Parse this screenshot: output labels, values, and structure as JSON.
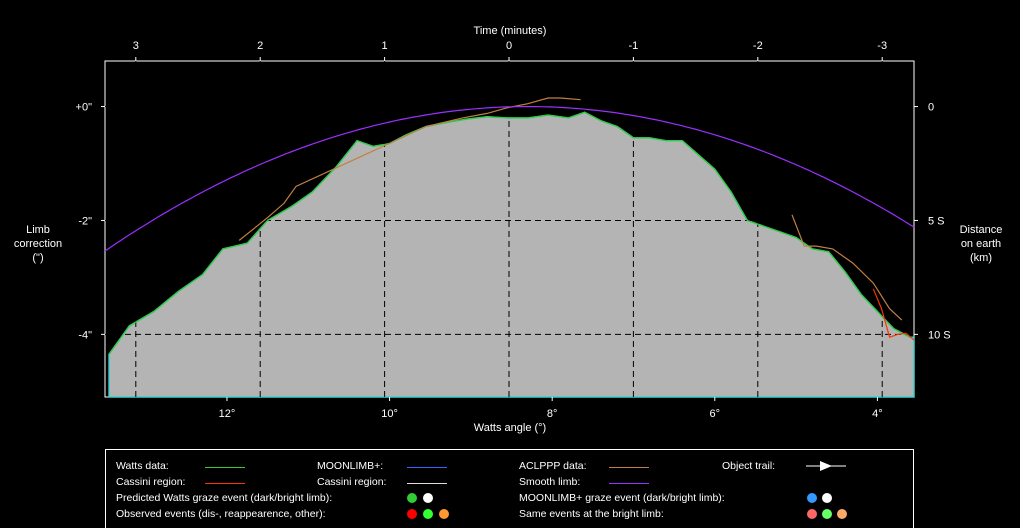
{
  "chart_data": {
    "type": "area",
    "top_axis": {
      "label": "Time (minutes)",
      "ticks": [
        "3",
        "2",
        "1",
        "0",
        "-1",
        "-2",
        "-3"
      ],
      "values": [
        3,
        2,
        1,
        0,
        -1,
        -2,
        -3
      ]
    },
    "bottom_axis": {
      "label": "Watts angle (°)",
      "ticks": [
        "12°",
        "10°",
        "8°",
        "6°",
        "4°"
      ],
      "values": [
        12,
        10,
        8,
        6,
        4
      ],
      "range": [
        13.5,
        3.55
      ]
    },
    "left_axis": {
      "label_lines": [
        "Limb",
        "correction",
        "(\")"
      ],
      "ticks": [
        "+0\"",
        "-2\"",
        "-4\""
      ],
      "values": [
        0,
        -2,
        -4
      ],
      "range": [
        0.8,
        -5.1
      ]
    },
    "right_axis": {
      "label_lines": [
        "Distance",
        "on earth",
        "(km)"
      ],
      "ticks": [
        "0",
        "5 S",
        "10 S"
      ],
      "values": [
        0,
        -2,
        -4
      ]
    },
    "grid": true,
    "series": [
      {
        "name": "Watts data",
        "color": "#33cc33",
        "x": [
          13.45,
          13.2,
          12.9,
          12.6,
          12.3,
          12.05,
          11.75,
          11.5,
          11.2,
          10.95,
          10.65,
          10.4,
          10.2,
          10.0,
          9.8,
          9.55,
          9.3,
          9.05,
          8.8,
          8.55,
          8.3,
          8.05,
          7.8,
          7.6,
          7.4,
          7.2,
          7.0,
          6.8,
          6.6,
          6.4,
          6.2,
          6.0,
          5.8,
          5.6,
          5.4,
          5.2,
          5.0,
          4.8,
          4.6,
          4.4,
          4.2,
          4.0,
          3.8,
          3.6
        ],
        "y": [
          -4.35,
          -3.85,
          -3.6,
          -3.25,
          -2.95,
          -2.5,
          -2.4,
          -2.0,
          -1.75,
          -1.5,
          -1.05,
          -0.6,
          -0.7,
          -0.65,
          -0.5,
          -0.35,
          -0.28,
          -0.22,
          -0.18,
          -0.2,
          -0.2,
          -0.15,
          -0.2,
          -0.1,
          -0.25,
          -0.35,
          -0.55,
          -0.55,
          -0.6,
          -0.6,
          -0.85,
          -1.1,
          -1.5,
          -2.0,
          -2.1,
          -2.2,
          -2.3,
          -2.5,
          -2.55,
          -2.9,
          -3.3,
          -3.6,
          -3.9,
          -4.05
        ]
      },
      {
        "name": "Cassini region",
        "color": "#ff3300",
        "x": [
          4.05,
          3.95,
          3.85,
          3.75,
          3.65,
          3.55
        ],
        "y": [
          -3.2,
          -3.55,
          -4.05,
          -4.0,
          -3.98,
          -4.1
        ]
      },
      {
        "name": "ACLPPP data",
        "color": "#c08040",
        "x": [
          11.85,
          11.5,
          11.3,
          11.15,
          9.55,
          9.1,
          8.8,
          8.55,
          8.3,
          8.05,
          7.9,
          7.65
        ],
        "y": [
          -2.35,
          -1.95,
          -1.7,
          -1.4,
          -0.35,
          -0.2,
          -0.12,
          -0.02,
          0.05,
          0.15,
          0.15,
          0.12
        ]
      },
      {
        "name": "ACLPPP data",
        "color": "#c08040",
        "x": [
          5.05,
          4.9,
          4.75,
          4.55,
          4.3,
          4.05,
          3.85,
          3.7
        ],
        "y": [
          -1.9,
          -2.45,
          -2.45,
          -2.5,
          -2.75,
          -3.1,
          -3.55,
          -3.75
        ]
      },
      {
        "name": "Smooth limb",
        "color": "#9b30ff",
        "curve": "parabola",
        "apex_x": 8.3,
        "apex_y": 0.0,
        "coef": -0.0938
      }
    ],
    "profile_fill": "#b4b4b4",
    "profile_edge": "#3ccfcf"
  },
  "legend": {
    "watts_data": "Watts data:",
    "cassini_region_1": "Cassini region:",
    "predicted_watts": "Predicted Watts graze event (dark/bright limb):",
    "observed_events": "Observed events (dis-, reappearence, other):",
    "moonlimb": "MOONLIMB+:",
    "cassini_region_2": "Cassini region:",
    "aclppp": "ACLPPP data:",
    "smooth": "Smooth limb:",
    "moonlimb_graze": "MOONLIMB+ graze event (dark/bright limb):",
    "same_events": "Same events at the bright limb:",
    "object_trail": "Object trail:"
  },
  "legend_colors": {
    "watts": "#33cc33",
    "cassini1": "#ff3300",
    "moonlimb": "#3366ff",
    "cassini2": "#dddddd",
    "aclppp": "#c08040",
    "smooth": "#9b30ff",
    "pred_dark": "#33cc33",
    "pred_bright": "#ffffff",
    "obs_dis": "#ff0000",
    "obs_re": "#33ff33",
    "obs_other": "#ff9933",
    "ml_dark": "#3399ff",
    "ml_bright": "#ffffff",
    "same_dis": "#ff6666",
    "same_re": "#66ff66",
    "same_other": "#ffaa66"
  }
}
